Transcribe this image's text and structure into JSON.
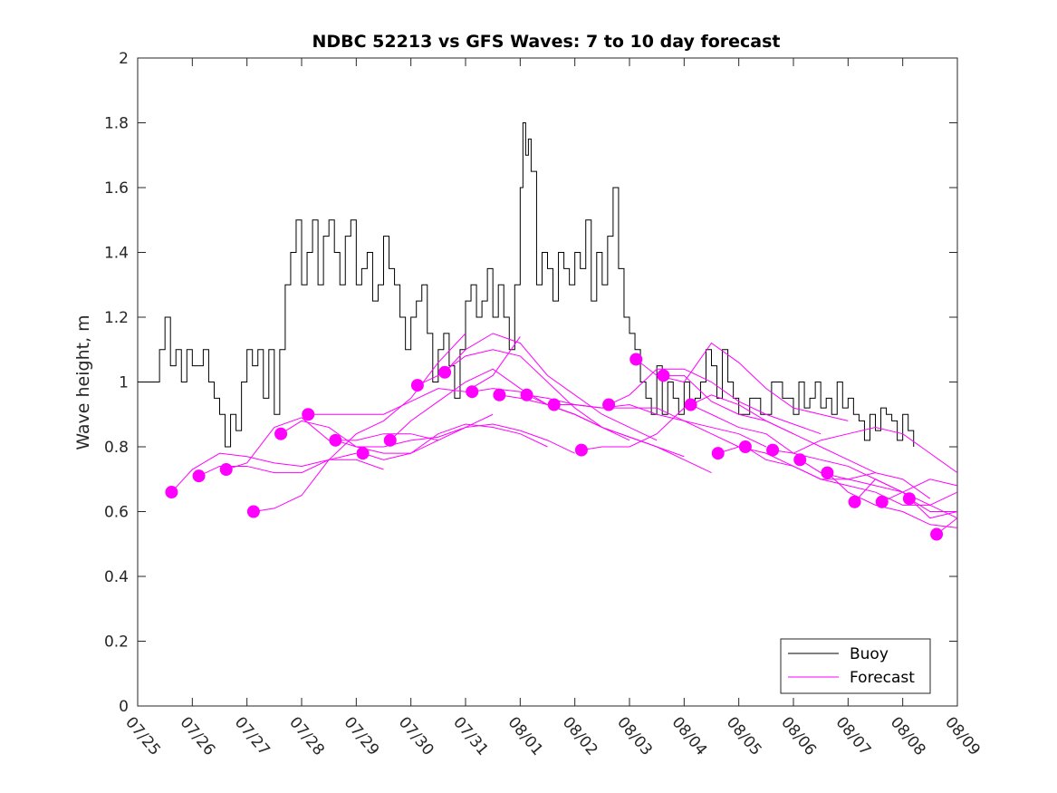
{
  "chart_data": {
    "type": "line",
    "title": "NDBC 52213 vs GFS Waves: 7 to 10 day forecast",
    "xlabel": "",
    "ylabel": "Wave height, m",
    "xlim_days": [
      0,
      15
    ],
    "x_ticks": [
      "07/25",
      "07/26",
      "07/27",
      "07/28",
      "07/29",
      "07/30",
      "07/31",
      "08/01",
      "08/02",
      "08/03",
      "08/04",
      "08/05",
      "08/06",
      "08/07",
      "08/08",
      "08/09"
    ],
    "ylim": [
      0,
      2
    ],
    "y_ticks": [
      "0",
      "0.2",
      "0.4",
      "0.6",
      "0.8",
      "1",
      "1.2",
      "1.4",
      "1.6",
      "1.8",
      "2"
    ],
    "y_tick_values": [
      0,
      0.2,
      0.4,
      0.6,
      0.8,
      1,
      1.2,
      1.4,
      1.6,
      1.8,
      2
    ],
    "grid": false,
    "legend_position": "bottom-right",
    "colors": {
      "buoy": "#000000",
      "forecast": "#ff00ff"
    },
    "series": [
      {
        "name": "Buoy",
        "kind": "step-line",
        "color": "#000000",
        "x": [
          0,
          0.2,
          0.4,
          0.5,
          0.6,
          0.7,
          0.8,
          0.9,
          1.0,
          1.2,
          1.3,
          1.4,
          1.5,
          1.6,
          1.7,
          1.8,
          1.9,
          2.0,
          2.1,
          2.2,
          2.3,
          2.4,
          2.5,
          2.6,
          2.7,
          2.8,
          2.9,
          3.0,
          3.1,
          3.2,
          3.3,
          3.4,
          3.5,
          3.6,
          3.7,
          3.8,
          3.9,
          4.0,
          4.1,
          4.2,
          4.3,
          4.4,
          4.5,
          4.6,
          4.7,
          4.8,
          4.9,
          5.0,
          5.1,
          5.2,
          5.3,
          5.4,
          5.5,
          5.6,
          5.7,
          5.8,
          5.9,
          6.0,
          6.1,
          6.2,
          6.3,
          6.4,
          6.5,
          6.6,
          6.7,
          6.8,
          6.9,
          7.0,
          7.05,
          7.1,
          7.15,
          7.2,
          7.3,
          7.4,
          7.5,
          7.6,
          7.7,
          7.8,
          7.9,
          8.0,
          8.1,
          8.2,
          8.3,
          8.4,
          8.5,
          8.6,
          8.7,
          8.8,
          8.9,
          9.0,
          9.1,
          9.2,
          9.3,
          9.4,
          9.5,
          9.6,
          9.7,
          9.8,
          9.9,
          10.0,
          10.1,
          10.2,
          10.3,
          10.4,
          10.5,
          10.6,
          10.7,
          10.8,
          10.9,
          11.0,
          11.2,
          11.4,
          11.6,
          11.8,
          12.0,
          12.1,
          12.2,
          12.3,
          12.4,
          12.5,
          12.6,
          12.7,
          12.8,
          12.9,
          13.0,
          13.1,
          13.2,
          13.3,
          13.4,
          13.5,
          13.6,
          13.7,
          13.8,
          13.9,
          14.0,
          14.1,
          14.2
        ],
        "values": [
          1.0,
          1.0,
          1.1,
          1.2,
          1.05,
          1.1,
          1.0,
          1.1,
          1.05,
          1.1,
          1.0,
          0.95,
          0.9,
          0.8,
          0.9,
          0.85,
          1.0,
          1.1,
          1.05,
          1.1,
          0.95,
          1.1,
          0.9,
          1.1,
          1.3,
          1.4,
          1.5,
          1.3,
          1.4,
          1.5,
          1.3,
          1.45,
          1.5,
          1.4,
          1.3,
          1.45,
          1.5,
          1.3,
          1.35,
          1.4,
          1.25,
          1.3,
          1.45,
          1.35,
          1.3,
          1.2,
          1.1,
          1.2,
          1.25,
          1.3,
          1.15,
          1.0,
          1.1,
          1.15,
          1.05,
          0.95,
          1.1,
          1.25,
          1.3,
          1.2,
          1.25,
          1.35,
          1.2,
          1.3,
          1.2,
          1.1,
          1.3,
          1.6,
          1.8,
          1.7,
          1.75,
          1.65,
          1.3,
          1.4,
          1.35,
          1.25,
          1.4,
          1.35,
          1.3,
          1.4,
          1.35,
          1.5,
          1.25,
          1.4,
          1.3,
          1.45,
          1.6,
          1.35,
          1.2,
          1.15,
          1.1,
          1.0,
          0.95,
          0.9,
          1.05,
          0.9,
          1.0,
          0.95,
          0.9,
          1.0,
          0.92,
          0.95,
          1.0,
          1.1,
          1.05,
          0.95,
          1.1,
          1.0,
          0.95,
          0.9,
          0.95,
          0.9,
          1.0,
          0.95,
          0.9,
          1.0,
          0.92,
          0.95,
          1.0,
          0.92,
          0.95,
          0.9,
          1.0,
          0.92,
          0.95,
          0.9,
          0.88,
          0.82,
          0.9,
          0.85,
          0.92,
          0.9,
          0.88,
          0.82,
          0.9,
          0.85,
          0.8
        ],
        "description_note": ""
      },
      {
        "name": "Forecast",
        "kind": "lines",
        "color": "#ff00ff",
        "lines": [
          {
            "x": [
              0.62,
              1.0,
              1.5,
              2.0,
              2.5,
              3.0,
              3.5,
              4.0
            ],
            "values": [
              0.66,
              0.73,
              0.78,
              0.77,
              0.75,
              0.74,
              0.76,
              0.78
            ]
          },
          {
            "x": [
              1.12,
              1.5,
              2.0,
              2.5,
              3.0,
              3.5,
              4.0,
              4.5
            ],
            "values": [
              0.71,
              0.74,
              0.74,
              0.72,
              0.72,
              0.76,
              0.76,
              0.73
            ]
          },
          {
            "x": [
              1.62,
              2.0,
              2.5,
              3.0,
              3.5,
              4.0,
              4.5,
              5.0,
              5.5
            ],
            "values": [
              0.73,
              0.75,
              0.86,
              0.89,
              0.82,
              0.82,
              0.84,
              0.84,
              0.82
            ]
          },
          {
            "x": [
              2.12,
              2.5,
              3.0,
              3.5,
              4.0,
              4.5,
              5.0,
              5.5,
              6.0
            ],
            "values": [
              0.6,
              0.61,
              0.65,
              0.76,
              0.84,
              0.88,
              0.95,
              1.06,
              1.15
            ]
          },
          {
            "x": [
              2.62,
              3.0,
              3.5,
              4.0,
              4.5,
              5.0,
              5.5,
              6.0,
              6.5
            ],
            "values": [
              0.84,
              0.88,
              0.86,
              0.8,
              0.8,
              0.82,
              0.83,
              0.86,
              0.9
            ]
          },
          {
            "x": [
              3.12,
              3.5,
              4.0,
              4.5,
              5.0,
              5.5,
              6.0,
              6.5,
              7.0
            ],
            "values": [
              0.9,
              0.9,
              0.9,
              0.9,
              0.94,
              0.98,
              0.97,
              1.02,
              1.14
            ]
          },
          {
            "x": [
              3.62,
              4.0,
              4.5,
              5.0,
              5.5,
              6.0,
              6.5,
              7.0,
              7.5
            ],
            "values": [
              0.82,
              0.8,
              0.78,
              0.78,
              0.84,
              0.87,
              0.86,
              0.84,
              0.8
            ]
          },
          {
            "x": [
              4.12,
              4.5,
              5.0,
              5.5,
              6.0,
              6.5,
              7.0,
              7.5,
              8.0
            ],
            "values": [
              0.78,
              0.76,
              0.78,
              0.82,
              0.86,
              0.87,
              0.85,
              0.82,
              0.78
            ]
          },
          {
            "x": [
              4.62,
              5.0,
              5.5,
              6.0,
              6.5,
              7.0,
              7.5,
              8.0,
              8.5
            ],
            "values": [
              0.82,
              0.88,
              0.94,
              1.0,
              1.04,
              0.98,
              0.93,
              0.9,
              0.86
            ]
          },
          {
            "x": [
              5.12,
              5.5,
              6.0,
              6.5,
              7.0,
              7.5,
              8.0,
              8.5,
              9.0
            ],
            "values": [
              0.99,
              1.02,
              1.08,
              1.1,
              1.08,
              1.0,
              0.92,
              0.86,
              0.82
            ]
          },
          {
            "x": [
              5.62,
              6.0,
              6.5,
              7.0,
              7.5,
              8.0,
              8.5,
              9.0,
              9.5
            ],
            "values": [
              1.03,
              1.1,
              1.15,
              1.12,
              1.02,
              0.96,
              0.9,
              0.86,
              0.82
            ]
          },
          {
            "x": [
              6.12,
              6.5,
              7.0,
              7.5,
              8.0,
              8.5,
              9.0,
              9.5,
              10.0
            ],
            "values": [
              0.97,
              0.98,
              0.97,
              0.93,
              0.9,
              0.86,
              0.83,
              0.8,
              0.77
            ]
          },
          {
            "x": [
              6.62,
              7.0,
              7.5,
              8.0,
              8.5,
              9.0,
              9.5,
              10.0,
              10.5
            ],
            "values": [
              0.96,
              0.95,
              0.93,
              0.9,
              0.86,
              0.83,
              0.8,
              0.76,
              0.72
            ]
          },
          {
            "x": [
              7.12,
              7.5,
              8.0,
              8.5,
              9.0,
              9.5,
              10.0,
              10.5,
              11.0
            ],
            "values": [
              0.96,
              0.95,
              0.93,
              0.92,
              0.93,
              0.9,
              0.88,
              0.84,
              0.8
            ]
          },
          {
            "x": [
              7.62,
              8.0,
              8.5,
              9.0,
              9.5,
              10.0,
              10.5,
              11.0,
              11.5
            ],
            "values": [
              0.93,
              0.93,
              0.92,
              0.92,
              0.92,
              0.88,
              0.86,
              0.84,
              0.8
            ]
          },
          {
            "x": [
              8.12,
              8.5,
              9.0,
              9.5,
              10.0,
              10.5,
              11.0,
              11.5,
              12.0
            ],
            "values": [
              0.79,
              0.8,
              0.8,
              0.84,
              0.92,
              0.96,
              0.93,
              0.88,
              0.84
            ]
          },
          {
            "x": [
              8.62,
              9.0,
              9.5,
              10.0,
              10.5,
              11.0,
              11.5,
              12.0,
              12.5
            ],
            "values": [
              0.93,
              0.96,
              1.04,
              1.04,
              1.0,
              0.94,
              0.9,
              0.87,
              0.84
            ]
          },
          {
            "x": [
              9.12,
              9.5,
              10.0,
              10.5,
              11.0,
              11.5,
              12.0,
              12.5,
              13.0
            ],
            "values": [
              1.07,
              1.02,
              1.0,
              1.12,
              1.06,
              0.98,
              0.92,
              0.9,
              0.88
            ]
          },
          {
            "x": [
              9.62,
              10.0,
              10.5,
              11.0,
              11.5,
              12.0,
              12.5,
              13.0,
              13.5
            ],
            "values": [
              1.02,
              1.02,
              0.94,
              0.9,
              0.88,
              0.84,
              0.8,
              0.76,
              0.72
            ]
          },
          {
            "x": [
              10.12,
              10.5,
              11.0,
              11.5,
              12.0,
              12.5,
              13.0,
              13.5,
              14.0
            ],
            "values": [
              0.93,
              0.9,
              0.86,
              0.84,
              0.78,
              0.76,
              0.74,
              0.7,
              0.66
            ]
          },
          {
            "x": [
              10.62,
              11.0,
              11.5,
              12.0,
              12.5,
              13.0,
              13.5,
              14.0,
              14.5
            ],
            "values": [
              0.78,
              0.8,
              0.78,
              0.74,
              0.7,
              0.7,
              0.72,
              0.7,
              0.64
            ]
          },
          {
            "x": [
              11.12,
              11.5,
              12.0,
              12.5,
              13.0,
              13.5,
              14.0,
              14.5,
              15.0
            ],
            "values": [
              0.8,
              0.76,
              0.74,
              0.7,
              0.68,
              0.66,
              0.62,
              0.62,
              0.58
            ]
          },
          {
            "x": [
              11.62,
              12.0,
              12.5,
              13.0,
              13.5,
              14.0,
              14.5,
              15.0
            ],
            "values": [
              0.79,
              0.78,
              0.82,
              0.84,
              0.86,
              0.84,
              0.78,
              0.72
            ]
          },
          {
            "x": [
              12.12,
              12.5,
              13.0,
              13.5,
              14.0,
              14.5,
              15.0
            ],
            "values": [
              0.76,
              0.72,
              0.7,
              0.68,
              0.66,
              0.58,
              0.6
            ]
          },
          {
            "x": [
              12.62,
              13.0,
              13.5,
              14.0,
              14.5,
              15.0
            ],
            "values": [
              0.72,
              0.66,
              0.62,
              0.6,
              0.56,
              0.55
            ]
          },
          {
            "x": [
              13.12,
              13.5,
              14.0,
              14.5,
              15.0
            ],
            "values": [
              0.63,
              0.7,
              0.66,
              0.62,
              0.66
            ]
          },
          {
            "x": [
              13.62,
              14.0,
              14.5,
              15.0
            ],
            "values": [
              0.63,
              0.66,
              0.7,
              0.68
            ]
          },
          {
            "x": [
              14.12,
              14.5,
              15.0
            ],
            "values": [
              0.64,
              0.6,
              0.6
            ]
          },
          {
            "x": [
              14.62,
              15.0
            ],
            "values": [
              0.53,
              0.58
            ]
          }
        ],
        "markers": {
          "x": [
            0.62,
            1.12,
            1.62,
            2.12,
            2.62,
            3.12,
            3.62,
            4.12,
            4.62,
            5.12,
            5.62,
            6.12,
            6.62,
            7.12,
            7.62,
            8.12,
            8.62,
            9.12,
            9.62,
            10.12,
            10.62,
            11.12,
            11.62,
            12.12,
            12.62,
            13.12,
            13.62,
            14.12,
            14.62
          ],
          "values": [
            0.66,
            0.71,
            0.73,
            0.6,
            0.84,
            0.9,
            0.82,
            0.78,
            0.82,
            0.99,
            1.03,
            0.97,
            0.96,
            0.96,
            0.93,
            0.79,
            0.93,
            1.07,
            1.02,
            0.93,
            0.78,
            0.8,
            0.79,
            0.76,
            0.72,
            0.63,
            0.63,
            0.64,
            0.53
          ]
        }
      }
    ]
  }
}
